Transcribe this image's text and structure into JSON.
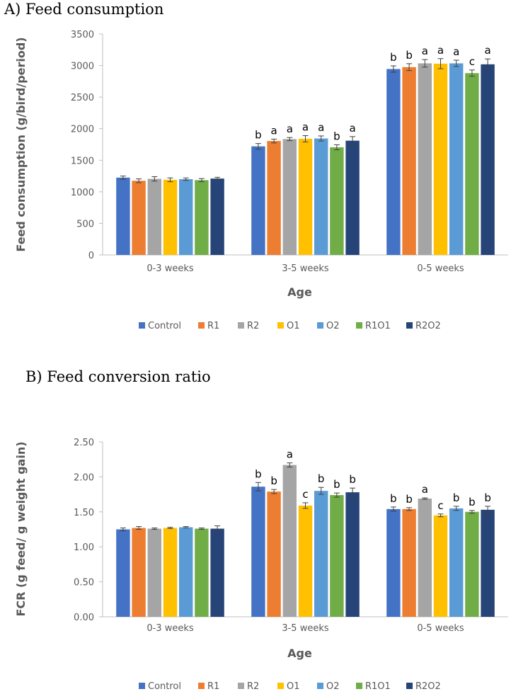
{
  "chart_data": [
    {
      "type": "bar",
      "panel_label": "A)",
      "title": "Feed consumption",
      "xlabel": "Age",
      "ylabel": "Feed consumption (g/bird/period)",
      "categories": [
        "0-3 weeks",
        "3-5 weeks",
        "0-5 weeks"
      ],
      "ylim": [
        0,
        3500
      ],
      "yticks": [
        "0",
        "500",
        "1000",
        "1500",
        "2000",
        "2500",
        "3000",
        "3500"
      ],
      "grid": false,
      "legend_position": "bottom",
      "series": [
        {
          "name": "Control",
          "color": "#4472C4",
          "values": [
            1225,
            1720,
            2945
          ],
          "errors": [
            25,
            45,
            50
          ],
          "letters": [
            "",
            "b",
            "b"
          ]
        },
        {
          "name": "R1",
          "color": "#ED7D31",
          "values": [
            1175,
            1805,
            2975
          ],
          "errors": [
            30,
            30,
            55
          ],
          "letters": [
            "",
            "a",
            "b"
          ]
        },
        {
          "name": "R2",
          "color": "#A5A5A5",
          "values": [
            1205,
            1835,
            3035
          ],
          "errors": [
            35,
            25,
            60
          ],
          "letters": [
            "",
            "a",
            "a"
          ]
        },
        {
          "name": "O1",
          "color": "#FFC000",
          "values": [
            1190,
            1840,
            3030
          ],
          "errors": [
            30,
            50,
            80
          ],
          "letters": [
            "",
            "a",
            "a"
          ]
        },
        {
          "name": "O2",
          "color": "#5B9BD5",
          "values": [
            1200,
            1845,
            3035
          ],
          "errors": [
            20,
            40,
            50
          ],
          "letters": [
            "",
            "a",
            "a"
          ]
        },
        {
          "name": "R1O1",
          "color": "#70AD47",
          "values": [
            1185,
            1705,
            2880
          ],
          "errors": [
            25,
            40,
            50
          ],
          "letters": [
            "",
            "b",
            "c"
          ]
        },
        {
          "name": "R2O2",
          "color": "#264478",
          "values": [
            1210,
            1810,
            3020
          ],
          "errors": [
            20,
            65,
            85
          ],
          "letters": [
            "",
            "a",
            "a"
          ]
        }
      ]
    },
    {
      "type": "bar",
      "panel_label": "B)",
      "title": "Feed conversion ratio",
      "xlabel": "Age",
      "ylabel": "FCR (g feed/ g weight gain)",
      "categories": [
        "0-3 weeks",
        "3-5 weeks",
        "0-5 weeks"
      ],
      "ylim": [
        0,
        2.5
      ],
      "yticks": [
        "0.00",
        "0.50",
        "1.00",
        "1.50",
        "2.00",
        "2.50"
      ],
      "grid": false,
      "legend_position": "bottom",
      "series": [
        {
          "name": "Control",
          "color": "#4472C4",
          "values": [
            1.25,
            1.86,
            1.54
          ],
          "errors": [
            0.02,
            0.06,
            0.03
          ],
          "letters": [
            "",
            "b",
            "b"
          ]
        },
        {
          "name": "R1",
          "color": "#ED7D31",
          "values": [
            1.27,
            1.79,
            1.54
          ],
          "errors": [
            0.02,
            0.03,
            0.02
          ],
          "letters": [
            "",
            "b",
            "b"
          ]
        },
        {
          "name": "R2",
          "color": "#A5A5A5",
          "values": [
            1.26,
            2.17,
            1.69
          ],
          "errors": [
            0.01,
            0.03,
            0.01
          ],
          "letters": [
            "",
            "a",
            "a"
          ]
        },
        {
          "name": "O1",
          "color": "#FFC000",
          "values": [
            1.27,
            1.59,
            1.45
          ],
          "errors": [
            0.01,
            0.04,
            0.02
          ],
          "letters": [
            "",
            "c",
            "c"
          ]
        },
        {
          "name": "O2",
          "color": "#5B9BD5",
          "values": [
            1.28,
            1.8,
            1.55
          ],
          "errors": [
            0.01,
            0.05,
            0.03
          ],
          "letters": [
            "",
            "b",
            "b"
          ]
        },
        {
          "name": "R1O1",
          "color": "#70AD47",
          "values": [
            1.26,
            1.74,
            1.5
          ],
          "errors": [
            0.01,
            0.03,
            0.02
          ],
          "letters": [
            "",
            "b",
            "b"
          ]
        },
        {
          "name": "R2O2",
          "color": "#264478",
          "values": [
            1.26,
            1.78,
            1.53
          ],
          "errors": [
            0.04,
            0.06,
            0.05
          ],
          "letters": [
            "",
            "b",
            "b"
          ]
        }
      ]
    }
  ]
}
